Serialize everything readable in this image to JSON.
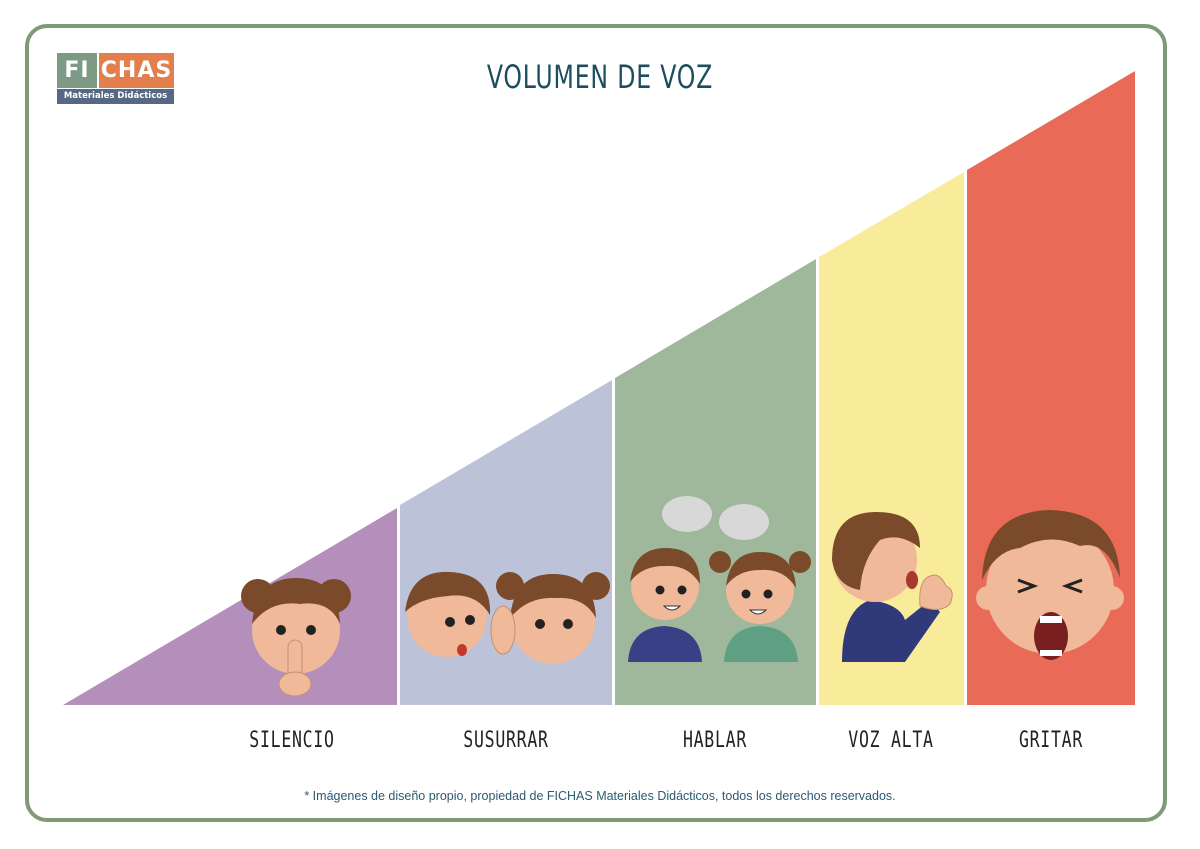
{
  "logo": {
    "left": "FI",
    "right": "CHAS",
    "subtitle": "Materiales Didácticos"
  },
  "title": "VOLUMEN DE VOZ",
  "colors": {
    "frame": "#7f9a78",
    "silencio": "#b48fbb",
    "susurrar": "#bcc3d9",
    "hablar": "#9fb89b",
    "voz_alta": "#f8ec9b",
    "gritar": "#e86a57",
    "title": "#1c4d5e"
  },
  "levels": [
    {
      "label": "SILENCIO",
      "icon": "girl-shush-icon"
    },
    {
      "label": "SUSURRAR",
      "icon": "whispering-children-icon"
    },
    {
      "label": "HABLAR",
      "icon": "talking-children-icon"
    },
    {
      "label": "VOZ ALTA",
      "icon": "boy-calling-icon"
    },
    {
      "label": "GRITAR",
      "icon": "boy-shouting-icon"
    }
  ],
  "footnote": "* Imágenes de diseño propio, propiedad de FICHAS Materiales Didácticos, todos los derechos reservados."
}
